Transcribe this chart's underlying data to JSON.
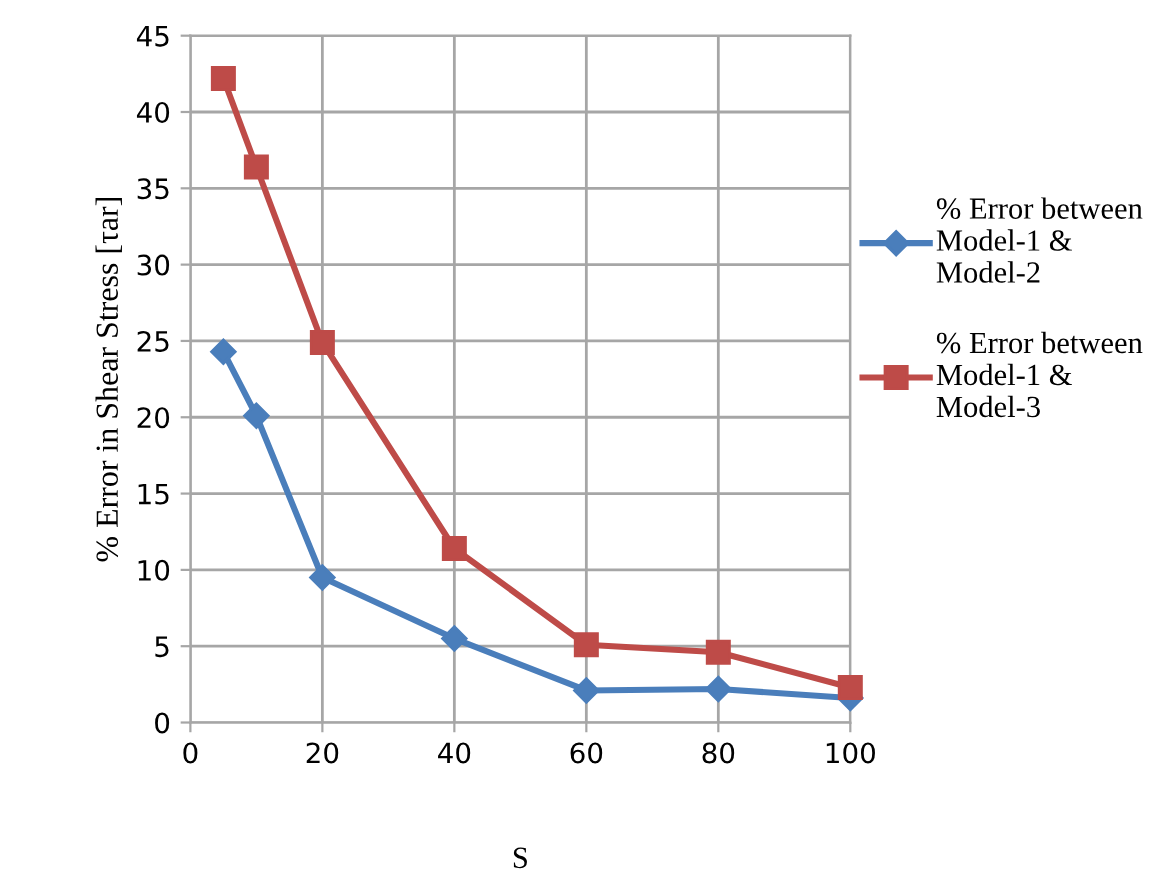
{
  "chart_data": {
    "type": "line",
    "xlabel": "S",
    "ylabel": "% Error in Shear Stress [τar]",
    "x": [
      5,
      10,
      20,
      40,
      60,
      80,
      100
    ],
    "series": [
      {
        "name": "% Error between Model-1 & Model-2",
        "color": "#4a7ebb",
        "marker": "diamond",
        "values": [
          24.3,
          20.1,
          9.5,
          5.5,
          2.1,
          2.2,
          1.6
        ]
      },
      {
        "name": "% Error between Model-1 & Model-3",
        "color": "#be4b48",
        "marker": "square",
        "values": [
          42.2,
          36.4,
          24.9,
          11.4,
          5.1,
          4.6,
          2.3
        ]
      }
    ],
    "xlim": [
      0,
      100
    ],
    "xticks": [
      0,
      20,
      40,
      60,
      80,
      100
    ],
    "ylim": [
      0,
      45
    ],
    "yticks": [
      0,
      5,
      10,
      15,
      20,
      25,
      30,
      35,
      40,
      45
    ],
    "grid": true,
    "legend": "right",
    "line_style": "solid"
  }
}
